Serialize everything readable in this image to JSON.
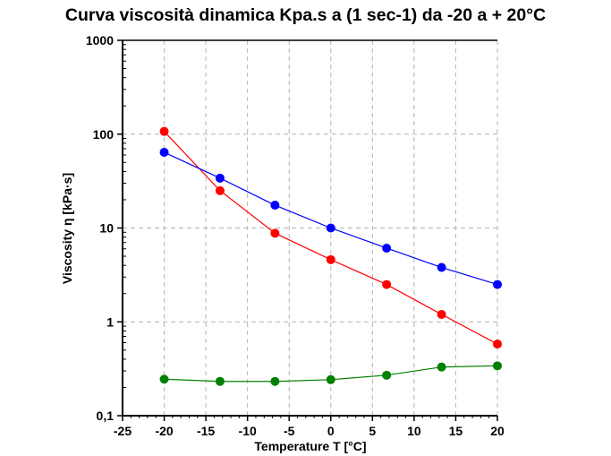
{
  "chart_data": {
    "type": "line",
    "title": "Curva viscosità dinamica Kpa.s a (1 sec-1) da -20 a + 20°C",
    "xlabel": "Temperature T [°C]",
    "ylabel": "Viscosity η [kPa·s]",
    "xlim": [
      -25,
      20
    ],
    "ylim": [
      0.1,
      1000
    ],
    "yscale": "log",
    "grid": true,
    "x_ticks": [
      "-25",
      "-20",
      "-15",
      "-10",
      "-5",
      "0",
      "5",
      "10",
      "15",
      "20"
    ],
    "y_ticks": [
      "0,1",
      "1",
      "10",
      "100",
      "1000"
    ],
    "x": [
      -20,
      -13.3,
      -6.7,
      0,
      6.7,
      13.3,
      20
    ],
    "series": [
      {
        "color": "#ff0000",
        "values": [
          107,
          25,
          8.8,
          4.6,
          2.5,
          1.2,
          0.58
        ]
      },
      {
        "color": "#0000ff",
        "values": [
          64,
          34,
          17.5,
          10,
          6.1,
          3.8,
          2.5
        ]
      },
      {
        "color": "#008000",
        "values": [
          0.245,
          0.232,
          0.232,
          0.242,
          0.27,
          0.33,
          0.34
        ]
      }
    ]
  }
}
